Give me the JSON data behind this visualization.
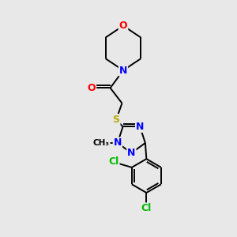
{
  "bg_color": "#e8e8e8",
  "bond_color": "#000000",
  "atom_colors": {
    "O": "#ff0000",
    "N": "#0000ff",
    "S": "#bbaa00",
    "Cl": "#00bb00",
    "C": "#000000"
  },
  "lw": 1.4
}
